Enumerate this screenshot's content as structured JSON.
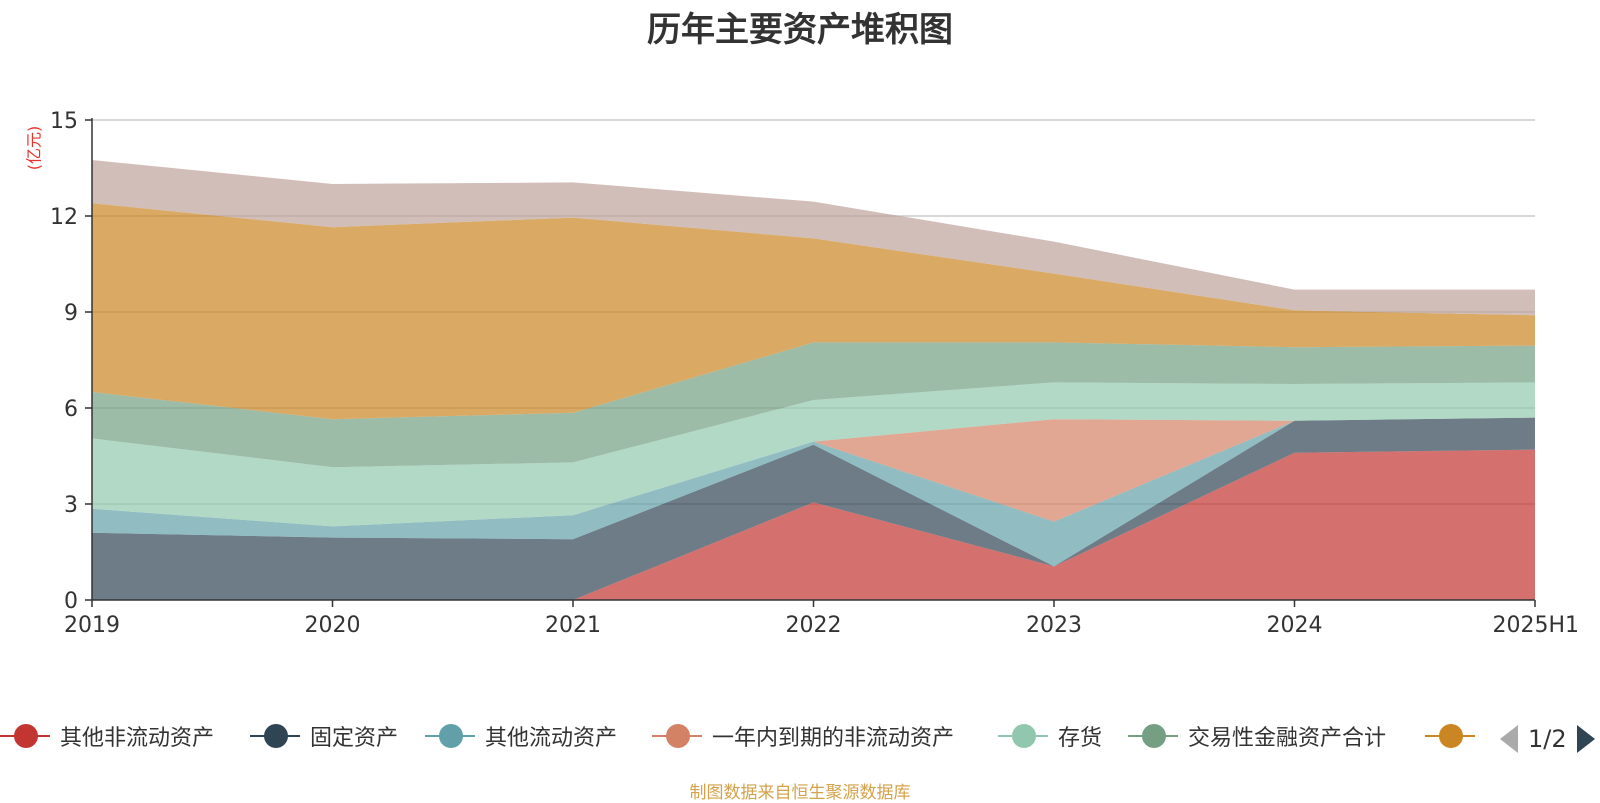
{
  "title": "历年主要资产堆积图",
  "unit_label": "(亿元)",
  "source_note": "制图数据来自恒生聚源数据库",
  "pager": {
    "text": "1/2"
  },
  "chart_data": {
    "type": "area",
    "stacked": true,
    "x": [
      "2019",
      "2020",
      "2021",
      "2022",
      "2023",
      "2024",
      "2025H1"
    ],
    "ylim": [
      0,
      15
    ],
    "yticks": [
      0,
      3,
      6,
      9,
      12,
      15
    ],
    "grid": true,
    "legend_position": "bottom",
    "series": [
      {
        "name": "其他非流动资产",
        "color": "#c23531",
        "values": [
          0.0,
          0.0,
          0.0,
          3.05,
          1.05,
          4.6,
          4.7
        ]
      },
      {
        "name": "固定资产",
        "color": "#2f4554",
        "values": [
          2.1,
          1.95,
          1.9,
          1.8,
          0.0,
          1.0,
          1.0
        ]
      },
      {
        "name": "其他流动资产",
        "color": "#61a0a8",
        "values": [
          0.75,
          0.35,
          0.75,
          0.1,
          1.4,
          0.0,
          0.0
        ]
      },
      {
        "name": "一年内到期的非流动资产",
        "color": "#d48265",
        "values": [
          0.0,
          0.0,
          0.0,
          0.0,
          3.2,
          0.0,
          0.0
        ]
      },
      {
        "name": "存货",
        "color": "#91c7ae",
        "values": [
          2.2,
          1.85,
          1.65,
          1.3,
          1.15,
          1.15,
          1.1
        ]
      },
      {
        "name": "交易性金融资产合计",
        "color": "#749f83",
        "values": [
          1.45,
          1.5,
          1.55,
          1.8,
          1.25,
          1.15,
          1.15
        ]
      },
      {
        "name": "",
        "color": "#ca8622",
        "values": [
          5.9,
          6.0,
          6.1,
          3.25,
          2.15,
          1.15,
          0.95
        ]
      },
      {
        "name": "",
        "color": "#bda29a",
        "values": [
          1.35,
          1.35,
          1.1,
          1.15,
          1.0,
          0.65,
          0.8
        ]
      }
    ]
  }
}
